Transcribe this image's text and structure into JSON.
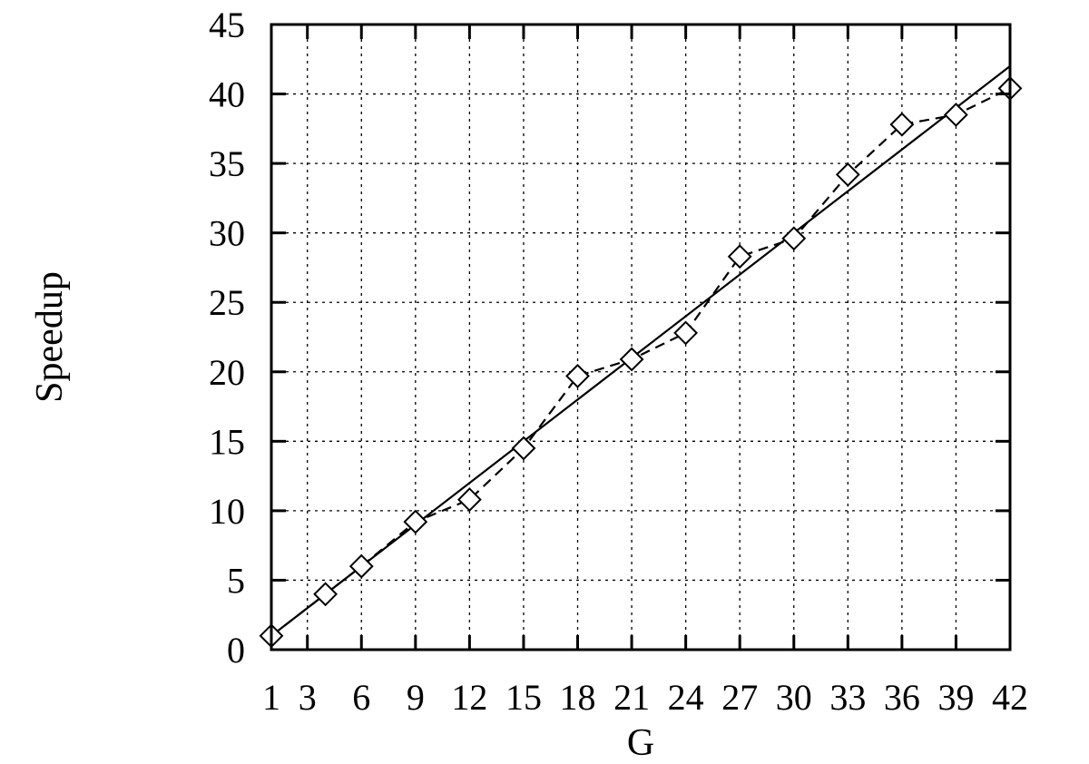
{
  "chart_data": {
    "type": "line",
    "title": "",
    "xlabel": "G",
    "ylabel": "Speedup",
    "x_ticks": [
      1,
      3,
      6,
      9,
      12,
      15,
      18,
      21,
      24,
      27,
      30,
      33,
      36,
      39,
      42
    ],
    "y_ticks": [
      0,
      5,
      10,
      15,
      20,
      25,
      30,
      35,
      40,
      45
    ],
    "xlim": [
      1,
      42
    ],
    "ylim": [
      0,
      45
    ],
    "grid": true,
    "legend": "none",
    "series": [
      {
        "style": "solid",
        "marker": "none",
        "x": [
          1,
          42
        ],
        "y": [
          1,
          42
        ]
      },
      {
        "style": "dashed",
        "marker": "diamond",
        "x": [
          1,
          4,
          6,
          9,
          12,
          15,
          18,
          21,
          24,
          27,
          30,
          33,
          36,
          39,
          42
        ],
        "y": [
          1,
          4,
          6,
          9.2,
          10.8,
          14.5,
          19.7,
          20.9,
          22.8,
          28.3,
          29.6,
          34.2,
          37.8,
          38.5,
          40.4
        ]
      }
    ],
    "colors": {
      "line": "#000000",
      "grid": "#000000",
      "background": "#ffffff"
    }
  }
}
